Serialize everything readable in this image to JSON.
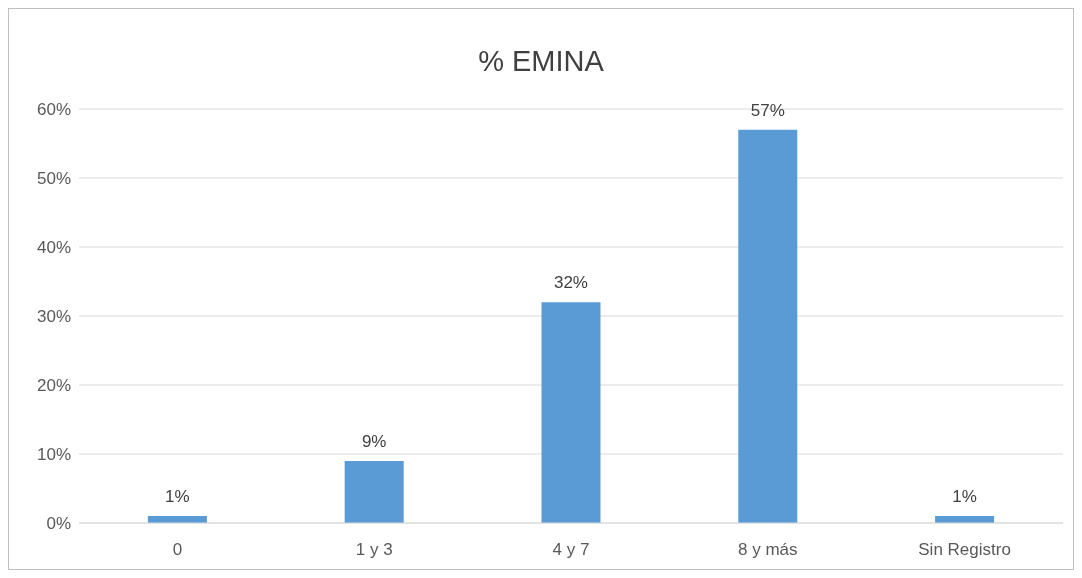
{
  "chart_data": {
    "type": "bar",
    "title": "% EMINA",
    "categories": [
      "0",
      "1 y 3",
      "4 y 7",
      "8 y más",
      "Sin Registro"
    ],
    "values": [
      1,
      9,
      32,
      57,
      1
    ],
    "value_labels": [
      "1%",
      "9%",
      "32%",
      "57%",
      "1%"
    ],
    "color": "#5b9bd5",
    "ylim": [
      0,
      60
    ],
    "yticks": [
      {
        "value": 0,
        "label": "0%"
      },
      {
        "value": 10,
        "label": "10%"
      },
      {
        "value": 20,
        "label": "20%"
      },
      {
        "value": 30,
        "label": "30%"
      },
      {
        "value": 40,
        "label": "40%"
      },
      {
        "value": 50,
        "label": "50%"
      },
      {
        "value": 60,
        "label": "60%"
      }
    ],
    "grid": "y",
    "legend": false
  }
}
